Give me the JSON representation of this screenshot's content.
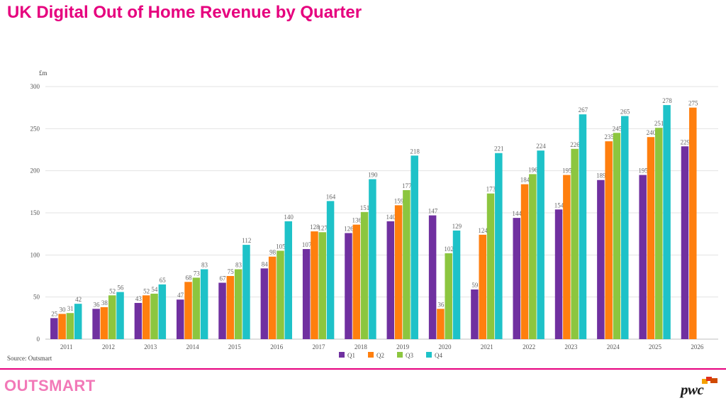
{
  "header": {
    "title": "UK Digital Out of Home Revenue by Quarter"
  },
  "footer": {
    "source": "Source: Outsmart",
    "brand": "OUTSMART",
    "logo_text": "pwc"
  },
  "colors": {
    "title": "#e6007e",
    "Q1": "#7030a0",
    "Q2": "#ff7f0e",
    "Q3": "#8cc63f",
    "Q4": "#1ec2c8"
  },
  "chart_data": {
    "type": "bar",
    "title": "UK Digital Out of Home Revenue by Quarter",
    "ylabel": "£m",
    "xlabel": "",
    "ylim": [
      0,
      300
    ],
    "yticks": [
      0,
      50,
      100,
      150,
      200,
      250,
      300
    ],
    "grid": true,
    "legend_position": "bottom",
    "categories": [
      "2011",
      "2012",
      "2013",
      "2014",
      "2015",
      "2016",
      "2017",
      "2018",
      "2019",
      "2020",
      "2021",
      "2022",
      "2023",
      "2024",
      "2025",
      "2026"
    ],
    "series": [
      {
        "name": "Q1",
        "color": "#7030a0",
        "values": [
          25,
          36,
          43,
          47,
          67,
          84,
          107,
          126,
          140,
          147,
          59,
          144,
          154,
          189,
          195,
          229
        ]
      },
      {
        "name": "Q2",
        "color": "#ff7f0e",
        "values": [
          30,
          38,
          52,
          68,
          75,
          98,
          128,
          136,
          159,
          36,
          124,
          184,
          195,
          235,
          240,
          275
        ]
      },
      {
        "name": "Q3",
        "color": "#8cc63f",
        "values": [
          31,
          52,
          54,
          73,
          83,
          105,
          127,
          151,
          177,
          102,
          173,
          196,
          226,
          245,
          251,
          null
        ]
      },
      {
        "name": "Q4",
        "color": "#1ec2c8",
        "values": [
          42,
          56,
          65,
          83,
          112,
          140,
          164,
          190,
          218,
          129,
          221,
          224,
          267,
          265,
          278,
          null
        ]
      }
    ]
  }
}
